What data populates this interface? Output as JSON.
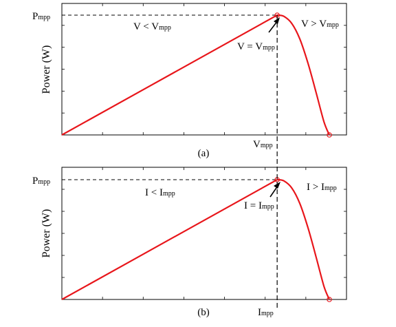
{
  "colors": {
    "curve": "#e8161b",
    "frame": "#000000",
    "dash": "#000000"
  },
  "chart_data": [
    {
      "type": "line",
      "panel": "a",
      "caption": "(a)",
      "ylabel": "Power (W)",
      "y_peak_label": {
        "main": "P",
        "sub": "mpp"
      },
      "x_peak_label": {
        "main": "V",
        "sub": "mpp"
      },
      "annotations": {
        "left": {
          "main": "V < V",
          "sub": "mpp"
        },
        "right": {
          "main": "V > V",
          "sub": "mpp"
        },
        "peak": {
          "main": "V = V",
          "sub": "mpp"
        }
      },
      "xlim": [
        0,
        1
      ],
      "ylim": [
        0,
        1.05
      ],
      "grid": false,
      "legend": "none",
      "x": [
        0,
        0.805,
        0.83,
        0.86,
        0.89,
        0.92,
        0.95,
        0.98,
        1.0
      ],
      "y": [
        0,
        1.0,
        0.99,
        0.93,
        0.8,
        0.6,
        0.36,
        0.11,
        0.0
      ]
    },
    {
      "type": "line",
      "panel": "b",
      "caption": "(b)",
      "ylabel": "Power (W)",
      "y_peak_label": {
        "main": "P",
        "sub": "mpp"
      },
      "x_peak_label": {
        "main": "I",
        "sub": "mpp"
      },
      "annotations": {
        "left": {
          "main": "I < I",
          "sub": "mpp"
        },
        "right": {
          "main": "I > I",
          "sub": "mpp"
        },
        "peak": {
          "main": "I = I",
          "sub": "mpp"
        }
      },
      "xlim": [
        0,
        1
      ],
      "ylim": [
        0,
        1.05
      ],
      "grid": false,
      "legend": "none",
      "x": [
        0,
        0.805,
        0.83,
        0.86,
        0.89,
        0.92,
        0.95,
        0.98,
        1.0
      ],
      "y": [
        0,
        1.0,
        0.99,
        0.93,
        0.8,
        0.6,
        0.36,
        0.11,
        0.0
      ]
    }
  ]
}
